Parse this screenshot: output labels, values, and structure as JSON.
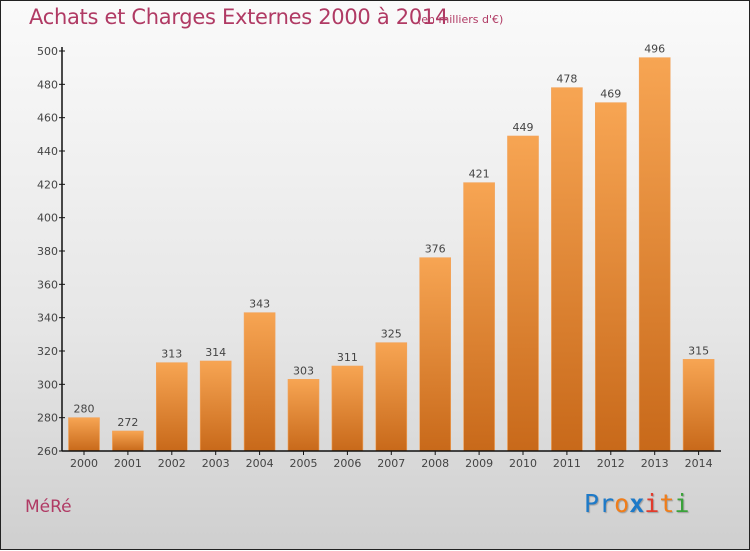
{
  "header": {
    "title": "Achats et Charges Externes 2000 à 2014",
    "subtitle": "(en milliers d'€)"
  },
  "footer": {
    "city": "MéRé",
    "logo": {
      "letters": [
        {
          "char": "P",
          "color": "#1e7ac8"
        },
        {
          "char": "r",
          "color": "#1e7ac8"
        },
        {
          "char": "o",
          "color": "#f07d1a"
        },
        {
          "char": "x",
          "color": "#1e7ac8"
        },
        {
          "char": "i",
          "color": "#e23b2c"
        },
        {
          "char": "t",
          "color": "#f07d1a"
        },
        {
          "char": "i",
          "color": "#3aa23a"
        }
      ]
    }
  },
  "colors": {
    "bar_top": "#f7a553",
    "bar_bottom": "#c8691a",
    "title": "#b03a64"
  },
  "chart_data": {
    "type": "bar",
    "title": "Achats et Charges Externes 2000 à 2014",
    "subtitle": "(en milliers d'€)",
    "xlabel": "",
    "ylabel": "",
    "categories": [
      "2000",
      "2001",
      "2002",
      "2003",
      "2004",
      "2005",
      "2006",
      "2007",
      "2008",
      "2009",
      "2010",
      "2011",
      "2012",
      "2013",
      "2014"
    ],
    "values": [
      280,
      272,
      313,
      314,
      343,
      303,
      311,
      325,
      376,
      421,
      449,
      478,
      469,
      496,
      315
    ],
    "ylim": [
      260,
      500
    ],
    "yticks": [
      260,
      280,
      300,
      320,
      340,
      360,
      380,
      400,
      420,
      440,
      460,
      480,
      500
    ],
    "grid": false,
    "legend": "none"
  }
}
